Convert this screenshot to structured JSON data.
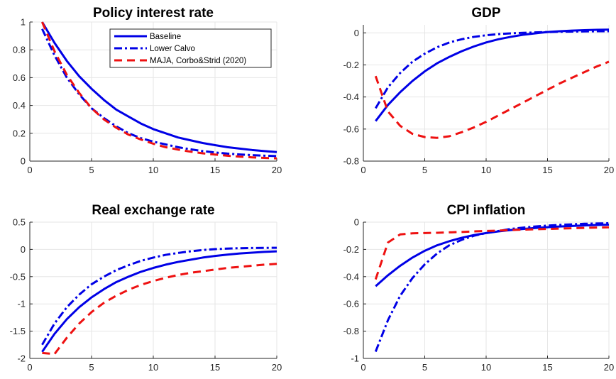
{
  "chart_data": [
    {
      "type": "line",
      "title": "Policy interest rate",
      "xlabel": "",
      "ylabel": "",
      "xlim": [
        0,
        20
      ],
      "ylim": [
        0,
        1
      ],
      "xticks": [
        0,
        5,
        10,
        15,
        20
      ],
      "yticks": [
        0,
        0.2,
        0.4,
        0.6,
        0.8,
        1
      ],
      "ytick_labels": [
        "0",
        "0.2",
        "0.4",
        "0.6",
        "0.8",
        "1"
      ],
      "grid": true,
      "legend": {
        "position": "top-right",
        "entries": [
          "Baseline",
          "Lower Calvo",
          "MAJA, Corbo&Strid (2020)"
        ]
      },
      "x": [
        1,
        2,
        3,
        4,
        5,
        6,
        7,
        8,
        9,
        10,
        11,
        12,
        13,
        14,
        15,
        16,
        17,
        18,
        19,
        20
      ],
      "series": [
        {
          "name": "Baseline",
          "style": "solid",
          "color": "#0000e6",
          "values": [
            1.0,
            0.85,
            0.72,
            0.61,
            0.52,
            0.44,
            0.37,
            0.32,
            0.27,
            0.23,
            0.2,
            0.17,
            0.15,
            0.13,
            0.115,
            0.1,
            0.09,
            0.08,
            0.072,
            0.065
          ]
        },
        {
          "name": "Lower Calvo",
          "style": "dashdot",
          "color": "#0000e6",
          "values": [
            0.95,
            0.76,
            0.6,
            0.48,
            0.38,
            0.31,
            0.25,
            0.2,
            0.165,
            0.14,
            0.12,
            0.1,
            0.085,
            0.072,
            0.062,
            0.054,
            0.048,
            0.043,
            0.039,
            0.036
          ]
        },
        {
          "name": "MAJA, Corbo&Strid (2020)",
          "style": "dashed",
          "color": "#ee1111",
          "values": [
            1.0,
            0.79,
            0.62,
            0.49,
            0.38,
            0.3,
            0.24,
            0.19,
            0.155,
            0.125,
            0.1,
            0.083,
            0.068,
            0.056,
            0.047,
            0.039,
            0.032,
            0.027,
            0.023,
            0.02
          ]
        }
      ]
    },
    {
      "type": "line",
      "title": "GDP",
      "xlabel": "",
      "ylabel": "",
      "xlim": [
        0,
        20
      ],
      "ylim": [
        -0.8,
        0.05
      ],
      "xticks": [
        0,
        5,
        10,
        15,
        20
      ],
      "yticks": [
        -0.8,
        -0.6,
        -0.4,
        -0.2,
        0
      ],
      "ytick_labels": [
        "-0.8",
        "-0.6",
        "-0.4",
        "-0.2",
        "0"
      ],
      "grid": true,
      "x": [
        1,
        2,
        3,
        4,
        5,
        6,
        7,
        8,
        9,
        10,
        11,
        12,
        13,
        14,
        15,
        16,
        17,
        18,
        19,
        20
      ],
      "series": [
        {
          "name": "Baseline",
          "style": "solid",
          "color": "#0000e6",
          "values": [
            -0.55,
            -0.45,
            -0.37,
            -0.3,
            -0.24,
            -0.19,
            -0.15,
            -0.115,
            -0.085,
            -0.06,
            -0.04,
            -0.025,
            -0.012,
            -0.003,
            0.005,
            0.01,
            0.014,
            0.017,
            0.019,
            0.02
          ]
        },
        {
          "name": "Lower Calvo",
          "style": "dashdot",
          "color": "#0000e6",
          "values": [
            -0.47,
            -0.34,
            -0.25,
            -0.18,
            -0.13,
            -0.09,
            -0.06,
            -0.04,
            -0.025,
            -0.015,
            -0.008,
            -0.003,
            0.0,
            0.003,
            0.005,
            0.007,
            0.008,
            0.009,
            0.01,
            0.01
          ]
        },
        {
          "name": "MAJA, Corbo&Strid (2020)",
          "style": "dashed",
          "color": "#ee1111",
          "values": [
            -0.27,
            -0.49,
            -0.58,
            -0.63,
            -0.65,
            -0.655,
            -0.645,
            -0.62,
            -0.59,
            -0.555,
            -0.515,
            -0.475,
            -0.435,
            -0.395,
            -0.355,
            -0.315,
            -0.28,
            -0.245,
            -0.21,
            -0.18
          ]
        }
      ]
    },
    {
      "type": "line",
      "title": "Real exchange rate",
      "xlabel": "",
      "ylabel": "",
      "xlim": [
        0,
        20
      ],
      "ylim": [
        -2,
        0.5
      ],
      "xticks": [
        0,
        5,
        10,
        15,
        20
      ],
      "yticks": [
        -2,
        -1.5,
        -1,
        -0.5,
        0,
        0.5
      ],
      "ytick_labels": [
        "-2",
        "-1.5",
        "-1",
        "-0.5",
        "0",
        "0.5"
      ],
      "grid": true,
      "x": [
        1,
        2,
        3,
        4,
        5,
        6,
        7,
        8,
        9,
        10,
        11,
        12,
        13,
        14,
        15,
        16,
        17,
        18,
        19,
        20
      ],
      "series": [
        {
          "name": "Baseline",
          "style": "solid",
          "color": "#0000e6",
          "values": [
            -1.88,
            -1.55,
            -1.28,
            -1.06,
            -0.88,
            -0.73,
            -0.6,
            -0.5,
            -0.41,
            -0.34,
            -0.28,
            -0.23,
            -0.19,
            -0.15,
            -0.12,
            -0.095,
            -0.075,
            -0.06,
            -0.045,
            -0.035
          ]
        },
        {
          "name": "Lower Calvo",
          "style": "dashdot",
          "color": "#0000e6",
          "values": [
            -1.75,
            -1.36,
            -1.06,
            -0.83,
            -0.64,
            -0.5,
            -0.38,
            -0.29,
            -0.21,
            -0.15,
            -0.1,
            -0.065,
            -0.035,
            -0.012,
            0.005,
            0.015,
            0.022,
            0.026,
            0.028,
            0.03
          ]
        },
        {
          "name": "MAJA, Corbo&Strid (2020)",
          "style": "dashed",
          "color": "#ee1111",
          "values": [
            -1.9,
            -1.92,
            -1.62,
            -1.36,
            -1.15,
            -0.98,
            -0.85,
            -0.74,
            -0.65,
            -0.58,
            -0.52,
            -0.47,
            -0.43,
            -0.4,
            -0.37,
            -0.34,
            -0.32,
            -0.3,
            -0.28,
            -0.265
          ]
        }
      ]
    },
    {
      "type": "line",
      "title": "CPI inflation",
      "xlabel": "",
      "ylabel": "",
      "xlim": [
        0,
        20
      ],
      "ylim": [
        -1,
        0
      ],
      "xticks": [
        0,
        5,
        10,
        15,
        20
      ],
      "yticks": [
        -1,
        -0.8,
        -0.6,
        -0.4,
        -0.2,
        0
      ],
      "ytick_labels": [
        "-1",
        "-0.8",
        "-0.6",
        "-0.4",
        "-0.2",
        "0"
      ],
      "grid": true,
      "x": [
        1,
        2,
        3,
        4,
        5,
        6,
        7,
        8,
        9,
        10,
        11,
        12,
        13,
        14,
        15,
        16,
        17,
        18,
        19,
        20
      ],
      "series": [
        {
          "name": "Baseline",
          "style": "solid",
          "color": "#0000e6",
          "values": [
            -0.47,
            -0.39,
            -0.32,
            -0.26,
            -0.21,
            -0.17,
            -0.14,
            -0.115,
            -0.095,
            -0.08,
            -0.068,
            -0.058,
            -0.05,
            -0.043,
            -0.037,
            -0.032,
            -0.028,
            -0.024,
            -0.021,
            -0.018
          ]
        },
        {
          "name": "Lower Calvo",
          "style": "dashdot",
          "color": "#0000e6",
          "values": [
            -0.95,
            -0.72,
            -0.54,
            -0.41,
            -0.31,
            -0.23,
            -0.17,
            -0.13,
            -0.1,
            -0.08,
            -0.065,
            -0.05,
            -0.04,
            -0.032,
            -0.025,
            -0.02,
            -0.016,
            -0.012,
            -0.01,
            -0.008
          ]
        },
        {
          "name": "MAJA, Corbo&Strid (2020)",
          "style": "dashed",
          "color": "#ee1111",
          "values": [
            -0.42,
            -0.15,
            -0.09,
            -0.082,
            -0.08,
            -0.078,
            -0.075,
            -0.072,
            -0.068,
            -0.065,
            -0.062,
            -0.058,
            -0.055,
            -0.052,
            -0.05,
            -0.047,
            -0.045,
            -0.042,
            -0.04,
            -0.038
          ]
        }
      ]
    }
  ]
}
